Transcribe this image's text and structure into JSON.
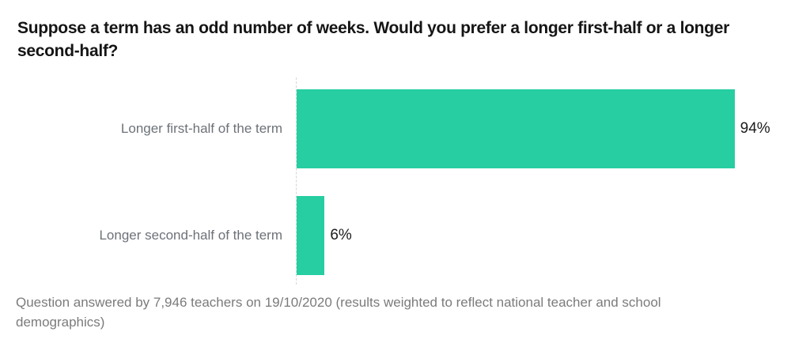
{
  "chart_data": {
    "type": "bar",
    "orientation": "horizontal",
    "title": "Suppose a term has an odd number of weeks. Would you prefer a longer first-half or a longer second-half?",
    "categories": [
      "Longer first-half of the term",
      "Longer second-half of the term"
    ],
    "values": [
      94,
      6
    ],
    "value_labels": [
      "94%",
      "6%"
    ],
    "xlim": [
      0,
      100
    ],
    "grid": false,
    "legend": false,
    "note": "Question answered by 7,946 teachers on 19/10/2020 (results weighted to reflect national teacher and school demographics)"
  },
  "colors": {
    "bar": "#26cea2",
    "title_text": "#151515",
    "label_text": "#6d7278",
    "value_text": "#1c1c1c",
    "note_text": "#7b7b7b",
    "axis_line": "#d6d6d6",
    "background": "#ffffff"
  }
}
